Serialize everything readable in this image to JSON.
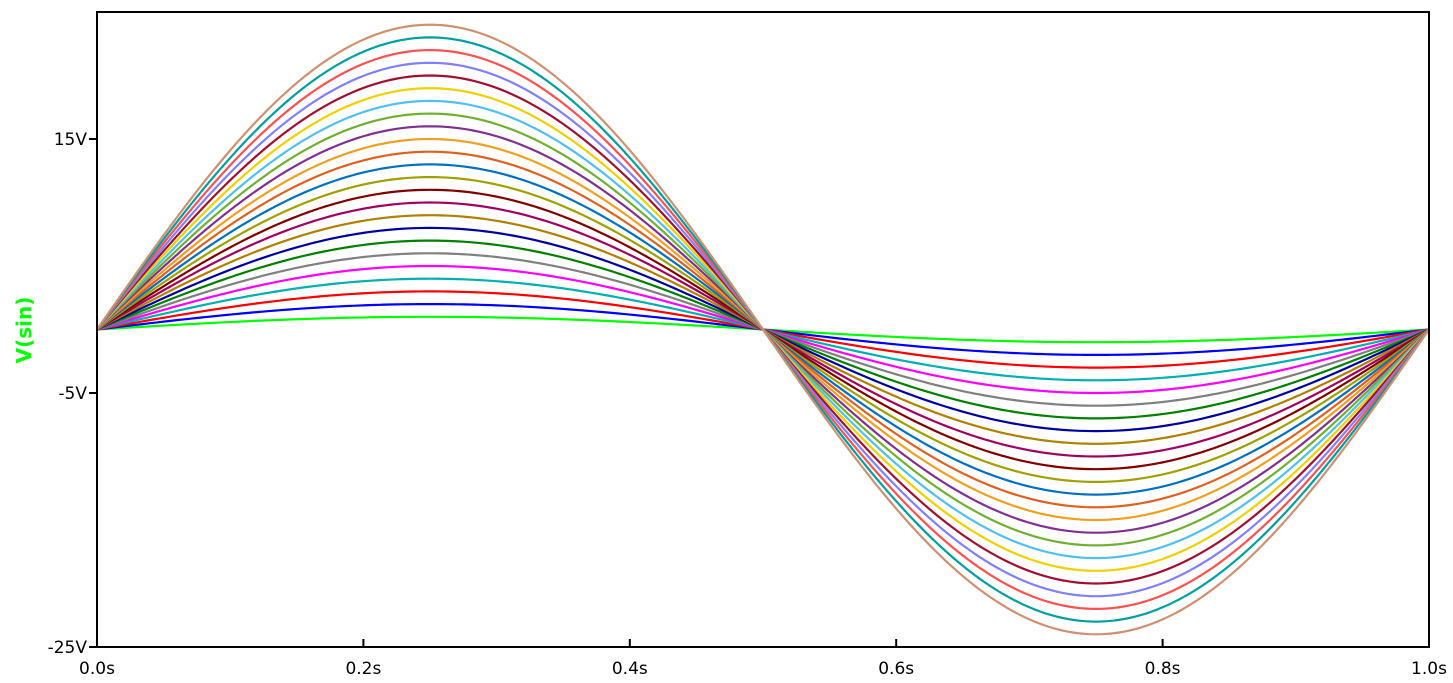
{
  "chart_data": {
    "type": "line",
    "title": "",
    "ylabel": "V(sin)",
    "ylabel_color": "#00ff00",
    "xlabel": "",
    "xlim": [
      0.0,
      1.0
    ],
    "ylim": [
      -25,
      25
    ],
    "grid": false,
    "x_ticks": [
      {
        "value": 0.0,
        "label": "0.0s"
      },
      {
        "value": 0.2,
        "label": "0.2s"
      },
      {
        "value": 0.4,
        "label": "0.4s"
      },
      {
        "value": 0.6,
        "label": "0.6s"
      },
      {
        "value": 0.8,
        "label": "0.8s"
      },
      {
        "value": 1.0,
        "label": "1.0s"
      }
    ],
    "y_ticks": [
      {
        "value": 15,
        "label": "15V"
      },
      {
        "value": -5,
        "label": "-5V"
      },
      {
        "value": -25,
        "label": "-25V"
      }
    ],
    "waveform": "sine",
    "offset": 0,
    "frequency_hz": 1,
    "x": [
      0.0,
      0.05,
      0.1,
      0.15,
      0.2,
      0.25,
      0.3,
      0.35,
      0.4,
      0.45,
      0.5,
      0.55,
      0.6,
      0.65,
      0.7,
      0.75,
      0.8,
      0.85,
      0.9,
      0.95,
      1.0
    ],
    "series": [
      {
        "amplitude": 1,
        "color": "#00ff00"
      },
      {
        "amplitude": 2,
        "color": "#0000ff"
      },
      {
        "amplitude": 3,
        "color": "#ff0000"
      },
      {
        "amplitude": 4,
        "color": "#00b0b0"
      },
      {
        "amplitude": 5,
        "color": "#ff00ff"
      },
      {
        "amplitude": 6,
        "color": "#808080"
      },
      {
        "amplitude": 7,
        "color": "#008000"
      },
      {
        "amplitude": 8,
        "color": "#0000a0"
      },
      {
        "amplitude": 9,
        "color": "#b08000"
      },
      {
        "amplitude": 10,
        "color": "#a00060"
      },
      {
        "amplitude": 11,
        "color": "#800000"
      },
      {
        "amplitude": 12,
        "color": "#a0a000"
      },
      {
        "amplitude": 13,
        "color": "#0070c0"
      },
      {
        "amplitude": 14,
        "color": "#e06020"
      },
      {
        "amplitude": 15,
        "color": "#f0a020"
      },
      {
        "amplitude": 16,
        "color": "#803090"
      },
      {
        "amplitude": 17,
        "color": "#70b030"
      },
      {
        "amplitude": 18,
        "color": "#50c0f0"
      },
      {
        "amplitude": 19,
        "color": "#f0d000"
      },
      {
        "amplitude": 20,
        "color": "#a01030"
      },
      {
        "amplitude": 21,
        "color": "#8080ff"
      },
      {
        "amplitude": 22,
        "color": "#ff5050"
      },
      {
        "amplitude": 23,
        "color": "#00a0a0"
      },
      {
        "amplitude": 24,
        "color": "#d09070"
      }
    ]
  }
}
